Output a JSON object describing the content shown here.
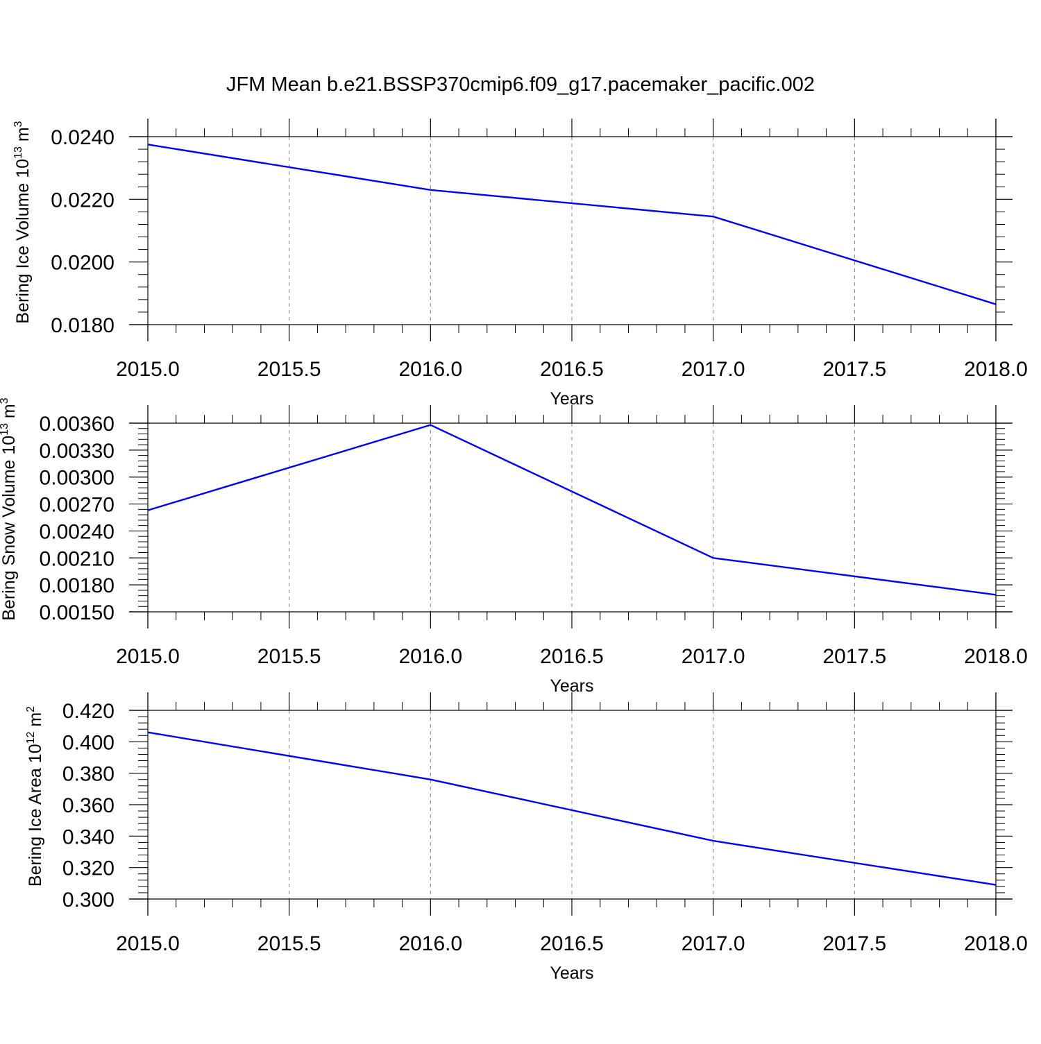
{
  "figure": {
    "title": "JFM Mean b.e21.BSSP370cmip6.f09_g17.pacemaker_pacific.002",
    "line_color": "#0000ff",
    "grid_color": "#808080"
  },
  "chart_data": [
    {
      "type": "line",
      "title": "",
      "xlabel": "Years",
      "ylabel": {
        "main": "Bering Ice Volume 10",
        "sup": "13",
        "unit": " m",
        "unit_sup": "3"
      },
      "x": [
        2015,
        2016,
        2017,
        2018
      ],
      "series": [
        {
          "values": [
            0.02375,
            0.0223,
            0.02145,
            0.01865
          ]
        }
      ],
      "xlim": [
        2015,
        2018
      ],
      "ylim": [
        0.018,
        0.024
      ],
      "xticks": [
        2015.0,
        2015.5,
        2016.0,
        2016.5,
        2017.0,
        2017.5,
        2018.0
      ],
      "xtick_labels": [
        "2015.0",
        "2015.5",
        "2016.0",
        "2016.5",
        "2017.0",
        "2017.5",
        "2018.0"
      ],
      "yticks": [
        0.018,
        0.02,
        0.022,
        0.024
      ],
      "ytick_labels": [
        "0.0180",
        "0.0200",
        "0.0220",
        "0.0240"
      ],
      "grid": "vertical dashed"
    },
    {
      "type": "line",
      "title": "",
      "xlabel": "Years",
      "ylabel": {
        "main": "Bering Snow Volume 10",
        "sup": "13",
        "unit": " m",
        "unit_sup": "3"
      },
      "x": [
        2015,
        2016,
        2017,
        2018
      ],
      "series": [
        {
          "values": [
            0.00263,
            0.00358,
            0.0021,
            0.00169
          ]
        }
      ],
      "xlim": [
        2015,
        2018
      ],
      "ylim": [
        0.0015,
        0.0036
      ],
      "xticks": [
        2015.0,
        2015.5,
        2016.0,
        2016.5,
        2017.0,
        2017.5,
        2018.0
      ],
      "xtick_labels": [
        "2015.0",
        "2015.5",
        "2016.0",
        "2016.5",
        "2017.0",
        "2017.5",
        "2018.0"
      ],
      "yticks": [
        0.0015,
        0.0018,
        0.0021,
        0.0024,
        0.0027,
        0.003,
        0.0033,
        0.0036
      ],
      "ytick_labels": [
        "0.00150",
        "0.00180",
        "0.00210",
        "0.00240",
        "0.00270",
        "0.00300",
        "0.00330",
        "0.00360"
      ],
      "grid": "vertical dashed"
    },
    {
      "type": "line",
      "title": "",
      "xlabel": "Years",
      "ylabel": {
        "main": "Bering Ice Area 10",
        "sup": "12",
        "unit": " m",
        "unit_sup": "2"
      },
      "x": [
        2015,
        2016,
        2017,
        2018
      ],
      "series": [
        {
          "values": [
            0.406,
            0.376,
            0.337,
            0.309
          ]
        }
      ],
      "xlim": [
        2015,
        2018
      ],
      "ylim": [
        0.3,
        0.42
      ],
      "xticks": [
        2015.0,
        2015.5,
        2016.0,
        2016.5,
        2017.0,
        2017.5,
        2018.0
      ],
      "xtick_labels": [
        "2015.0",
        "2015.5",
        "2016.0",
        "2016.5",
        "2017.0",
        "2017.5",
        "2018.0"
      ],
      "yticks": [
        0.3,
        0.32,
        0.34,
        0.36,
        0.38,
        0.4,
        0.42
      ],
      "ytick_labels": [
        "0.300",
        "0.320",
        "0.340",
        "0.360",
        "0.380",
        "0.400",
        "0.420"
      ],
      "grid": "vertical dashed"
    }
  ]
}
